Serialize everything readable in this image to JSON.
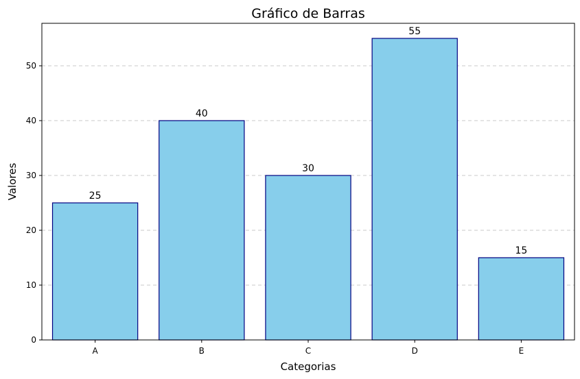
{
  "chart_data": {
    "type": "bar",
    "title": "Gráfico de Barras",
    "xlabel": "Categorias",
    "ylabel": "Valores",
    "categories": [
      "A",
      "B",
      "C",
      "D",
      "E"
    ],
    "values": [
      25,
      40,
      30,
      55,
      15
    ],
    "data_labels": [
      "25",
      "40",
      "30",
      "55",
      "15"
    ],
    "ylim": [
      0,
      57.75
    ],
    "yticks": [
      0,
      10,
      20,
      30,
      40,
      50
    ],
    "grid": "y-dashed",
    "bar_color": "#87ceeb",
    "bar_edge_color": "#000080",
    "grid_color": "#c8c8c8"
  }
}
